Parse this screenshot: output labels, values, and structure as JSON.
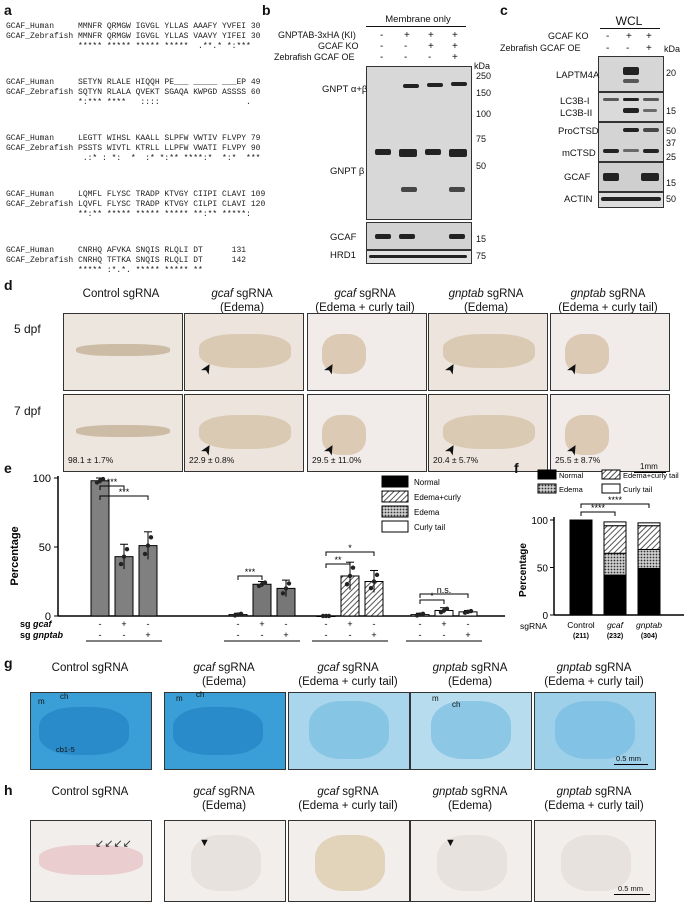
{
  "panels": {
    "a": "a",
    "b": "b",
    "c": "c",
    "d": "d",
    "e": "e",
    "f": "f",
    "g": "g",
    "h": "h"
  },
  "alignment": {
    "rows": [
      {
        "h": "GCAF_Human     MMNFR QRMGW IGVGL YLLAS AAAFY YVFEI 30",
        "z": "GCAF_Zebrafish MMNFR QRMGW IGVGL YLLAS VAAVY YIFEI 30",
        "c": "               ***** ***** ***** *****  .**.* *:***"
      },
      {
        "h": "GCAF_Human     SETYN RLALE HIQQH PE___ _____ ___EP 49",
        "z": "GCAF_Zebrafish SQTYN RLALA QVEKT SGAQA KWPGD ASSSS 60",
        "c": "               *:*** ****   ::::                  ."
      },
      {
        "h": "GCAF_Human     LEGTT WIHSL KAALL SLPFW VWTIV FLVPY 79",
        "z": "GCAF_Zebrafish PSSTS WIVTL KTRLL LLPFW VWATI FLVPY 90",
        "c": "                .:* : *:  *  :* *:** ****:*  *:*  ***"
      },
      {
        "h": "GCAF_Human     LQMFL FLYSC TRADP KTVGY CIIPI CLAVI 109",
        "z": "GCAF_Zebrafish LQVFL FLYSC TRADP KTVGY CILPI CLAVI 120",
        "c": "               **:** ***** ***** ***** **:** *****:"
      },
      {
        "h": "GCAF_Human     CNRHQ AFVKA SNQIS RLQLI DT      131",
        "z": "GCAF_Zebrafish CNRHQ TFTKA SNQIS RLQLI DT      142",
        "c": "               ***** :*.*. ***** ***** **"
      }
    ]
  },
  "blot_b": {
    "header": "Membrane only",
    "rows": [
      "GNPTAB-3xHA (KI)",
      "GCAF KO",
      "Zebrafish GCAF OE"
    ],
    "signs": [
      [
        "-",
        "+",
        "+",
        "+"
      ],
      [
        "-",
        "-",
        "+",
        "+"
      ],
      [
        "-",
        "-",
        "-",
        "+"
      ]
    ],
    "kda": "kDa",
    "markers": [
      "250",
      "150",
      "100",
      "75",
      "50",
      "15",
      "75"
    ],
    "labels": {
      "gnpt_ab": "GNPT α+β",
      "gnpt_b": "GNPT β",
      "gcaf": "GCAF",
      "hrd1": "HRD1"
    }
  },
  "blot_c": {
    "header": "WCL",
    "rows": [
      "GCAF KO",
      "Zebrafish GCAF OE"
    ],
    "signs": [
      [
        "-",
        "+",
        "+"
      ],
      [
        "-",
        "-",
        "+"
      ]
    ],
    "kda": "kDa",
    "labels": [
      "LAPTM4A",
      "LC3B-I",
      "LC3B-II",
      "ProCTSD",
      "mCTSD",
      "GCAF",
      "ACTIN"
    ],
    "markers": [
      "20",
      "15",
      "50",
      "37",
      "25",
      "15",
      "50"
    ]
  },
  "panel_d": {
    "columns": [
      {
        "l1": "Control sgRNA",
        "gene": "",
        "l2": ""
      },
      {
        "l1": " sgRNA",
        "gene": "gcaf",
        "l2": "(Edema)"
      },
      {
        "l1": " sgRNA",
        "gene": "gcaf",
        "l2": "(Edema + curly tail)"
      },
      {
        "l1": " sgRNA",
        "gene": "gnptab",
        "l2": "(Edema)"
      },
      {
        "l1": " sgRNA",
        "gene": "gnptab",
        "l2": "(Edema + curly tail)"
      }
    ],
    "rows": [
      "5 dpf",
      "7 dpf"
    ],
    "percents": [
      "98.1 ± 1.7%",
      "22.9 ± 0.8%",
      "29.5 ± 11.0%",
      "20.4 ± 5.7%",
      "25.5 ± 8.7%"
    ],
    "scale": "1mm"
  },
  "panel_e": {
    "ylabel": "Percentage",
    "yticks": [
      "0",
      "50",
      "100"
    ],
    "groups": [
      "Normal",
      "Edema",
      "Edema+curly tail",
      "Curly tail"
    ],
    "row_labels": [
      "sg gcaf",
      "sg gnptab"
    ],
    "gene1": "gcaf",
    "gene2": "gnptab",
    "signs_gcaf": [
      "-",
      "+",
      "-"
    ],
    "signs_gnptab": [
      "-",
      "-",
      "+"
    ],
    "legend": [
      "Normal",
      "Edema+curly",
      "Edema",
      "Curly tail"
    ],
    "sig": [
      "***",
      "***",
      "***",
      "**",
      "*",
      "*",
      "n.s."
    ]
  },
  "chart_data": [
    {
      "type": "bar",
      "ylabel": "Percentage",
      "ylim": [
        0,
        100
      ],
      "categories": [
        "Normal",
        "Edema",
        "Edema+curly tail",
        "Curly tail"
      ],
      "series": [
        {
          "name": "Control",
          "values": [
            98,
            1,
            0,
            1
          ]
        },
        {
          "name": "gcaf",
          "values": [
            43,
            23,
            29,
            4
          ]
        },
        {
          "name": "gnptab",
          "values": [
            51,
            20,
            25,
            3
          ]
        }
      ]
    },
    {
      "type": "bar",
      "ylabel": "Percentage",
      "ylim": [
        0,
        100
      ],
      "categories": [
        "Control",
        "gcaf",
        "gnptab"
      ],
      "n": [
        "(211)",
        "(232)",
        "(304)"
      ],
      "series": [
        {
          "name": "Normal",
          "values": [
            99,
            42,
            49
          ]
        },
        {
          "name": "Edema",
          "values": [
            1,
            23,
            20
          ]
        },
        {
          "name": "Edema+curly tail",
          "values": [
            0,
            29,
            25
          ]
        },
        {
          "name": "Curly tail",
          "values": [
            0,
            4,
            3
          ]
        }
      ]
    }
  ],
  "panel_f": {
    "ylabel": "Percentage",
    "xlabel": "sgRNA",
    "yticks": [
      "0",
      "50",
      "100"
    ],
    "cats": [
      "Control",
      "gcaf",
      "gnptab"
    ],
    "n": [
      "(211)",
      "(232)",
      "(304)"
    ],
    "legend": [
      "Normal",
      "Edema+curly tail",
      "Edema",
      "Curly tail"
    ],
    "sig": [
      "****",
      "****"
    ]
  },
  "panel_g": {
    "titles": [
      {
        "gene": "",
        "a": "Control sgRNA",
        "b": ""
      },
      {
        "gene": "gcaf",
        "a": " sgRNA",
        "b": "(Edema)"
      },
      {
        "gene": "gcaf",
        "a": " sgRNA",
        "b": "(Edema + curly tail)"
      },
      {
        "gene": "gnptab",
        "a": " sgRNA",
        "b": "(Edema)"
      },
      {
        "gene": "gnptab",
        "a": " sgRNA",
        "b": "(Edema + curly tail)"
      }
    ],
    "ann": [
      "m",
      "ch",
      "cb1-5",
      "m",
      "ch",
      "m",
      "ch"
    ],
    "scale": "0.5 mm"
  },
  "panel_h": {
    "titles": [
      {
        "gene": "",
        "a": "Control sgRNA",
        "b": ""
      },
      {
        "gene": "gcaf",
        "a": " sgRNA",
        "b": "(Edema)"
      },
      {
        "gene": "gcaf",
        "a": " sgRNA",
        "b": "(Edema + curly tail)"
      },
      {
        "gene": "gnptab",
        "a": " sgRNA",
        "b": "(Edema)"
      },
      {
        "gene": "gnptab",
        "a": " sgRNA",
        "b": "(Edema + curly tail)"
      }
    ],
    "scale": "0.5 mm"
  },
  "colors": {
    "bar": "#7f7f7f",
    "blue": "#3aa0d8",
    "black": "#000000"
  }
}
